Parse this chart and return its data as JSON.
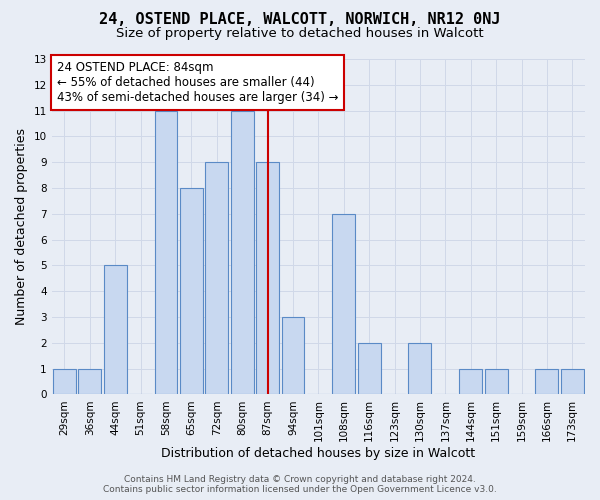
{
  "title": "24, OSTEND PLACE, WALCOTT, NORWICH, NR12 0NJ",
  "subtitle": "Size of property relative to detached houses in Walcott",
  "xlabel": "Distribution of detached houses by size in Walcott",
  "ylabel": "Number of detached properties",
  "categories": [
    "29sqm",
    "36sqm",
    "44sqm",
    "51sqm",
    "58sqm",
    "65sqm",
    "72sqm",
    "80sqm",
    "87sqm",
    "94sqm",
    "101sqm",
    "108sqm",
    "116sqm",
    "123sqm",
    "130sqm",
    "137sqm",
    "144sqm",
    "151sqm",
    "159sqm",
    "166sqm",
    "173sqm"
  ],
  "values": [
    1,
    1,
    5,
    0,
    11,
    8,
    9,
    11,
    9,
    3,
    0,
    7,
    2,
    0,
    2,
    0,
    1,
    1,
    0,
    1,
    1
  ],
  "bar_color": "#c8d8f0",
  "bar_edge_color": "#5a8ac6",
  "vline_x_index": 8,
  "vline_color": "#cc0000",
  "annotation_text": "24 OSTEND PLACE: 84sqm\n← 55% of detached houses are smaller (44)\n43% of semi-detached houses are larger (34) →",
  "annotation_box_color": "#ffffff",
  "annotation_box_edge": "#cc0000",
  "ylim": [
    0,
    13
  ],
  "yticks": [
    0,
    1,
    2,
    3,
    4,
    5,
    6,
    7,
    8,
    9,
    10,
    11,
    12,
    13
  ],
  "grid_color": "#d0d8e8",
  "background_color": "#e8edf5",
  "footer_line1": "Contains HM Land Registry data © Crown copyright and database right 2024.",
  "footer_line2": "Contains public sector information licensed under the Open Government Licence v3.0.",
  "title_fontsize": 11,
  "subtitle_fontsize": 9.5,
  "axis_label_fontsize": 9,
  "tick_fontsize": 7.5,
  "annotation_fontsize": 8.5,
  "footer_fontsize": 6.5
}
